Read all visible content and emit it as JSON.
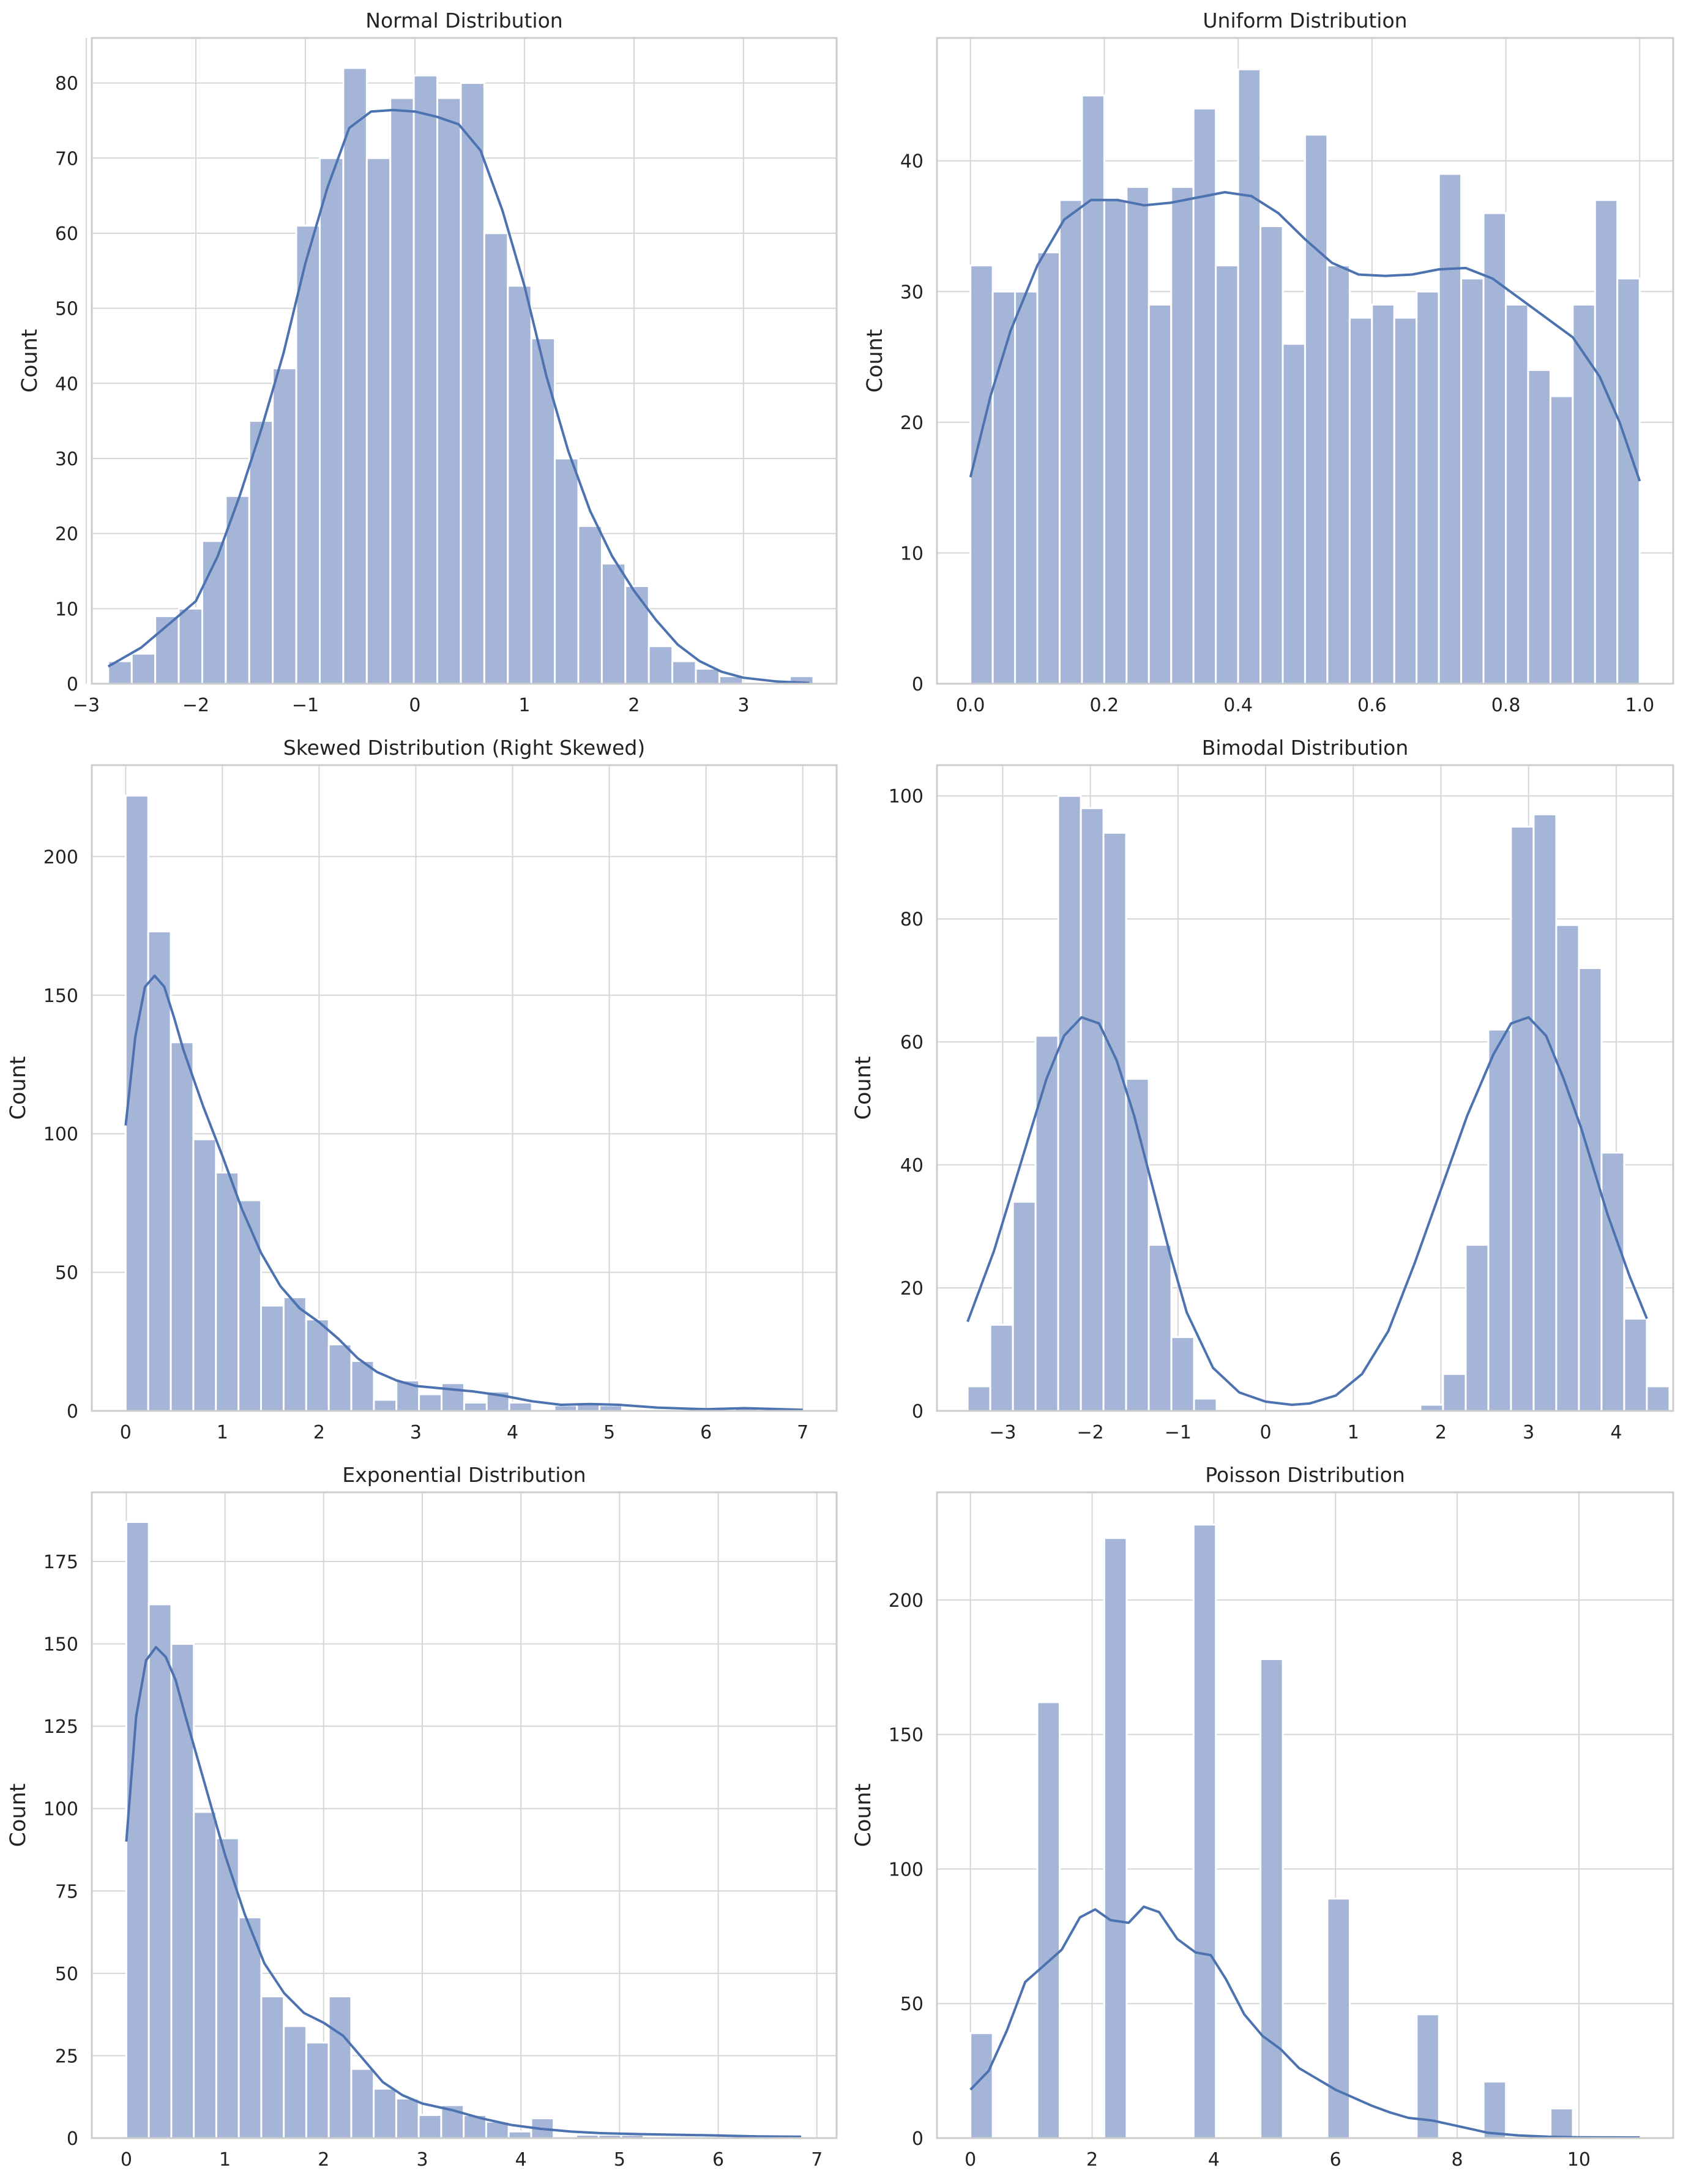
{
  "chart_data": [
    {
      "type": "histogram",
      "title": "Normal Distribution",
      "xlabel": "",
      "ylabel": "Count",
      "xlim": [
        -2.95,
        3.85
      ],
      "ylim": [
        0,
        86
      ],
      "xticks": [
        -3,
        -2,
        -1,
        0,
        1,
        2,
        3
      ],
      "xticklabels": [
        "−3",
        "−2",
        "−1",
        "0",
        "1",
        "2",
        "3"
      ],
      "yticks": [
        0,
        10,
        20,
        30,
        40,
        50,
        60,
        70,
        80
      ],
      "yticklabels": [
        "0",
        "10",
        "20",
        "30",
        "40",
        "50",
        "60",
        "70",
        "80"
      ],
      "bin_start": -2.8,
      "bin_width": 0.2146,
      "counts": [
        3,
        4,
        9,
        10,
        19,
        25,
        35,
        42,
        61,
        70,
        82,
        70,
        78,
        81,
        78,
        80,
        60,
        53,
        46,
        30,
        21,
        16,
        13,
        5,
        3,
        2,
        1,
        0,
        0,
        1
      ],
      "kde": {
        "x": [
          -2.8,
          -2.5,
          -2.2,
          -2.0,
          -1.8,
          -1.6,
          -1.4,
          -1.2,
          -1.0,
          -0.8,
          -0.6,
          -0.4,
          -0.2,
          0.0,
          0.2,
          0.4,
          0.6,
          0.8,
          1.0,
          1.2,
          1.4,
          1.6,
          1.8,
          2.0,
          2.2,
          2.4,
          2.6,
          2.8,
          3.0,
          3.3,
          3.6
        ],
        "y": [
          2.3,
          4.8,
          8.5,
          11,
          17,
          25,
          34,
          44,
          56,
          66,
          74,
          76.2,
          76.4,
          76.2,
          75.5,
          74.5,
          71,
          63,
          53,
          41,
          31,
          23,
          17,
          12.4,
          8.5,
          5.2,
          3,
          1.6,
          0.8,
          0.3,
          0.1
        ]
      }
    },
    {
      "type": "histogram",
      "title": "Uniform Distribution",
      "xlabel": "",
      "ylabel": "Count",
      "xlim": [
        -0.05,
        1.05
      ],
      "ylim": [
        0,
        49.4
      ],
      "xticks": [
        0.0,
        0.2,
        0.4,
        0.6,
        0.8,
        1.0
      ],
      "xticklabels": [
        "0.0",
        "0.2",
        "0.4",
        "0.6",
        "0.8",
        "1.0"
      ],
      "yticks": [
        0,
        10,
        20,
        30,
        40
      ],
      "yticklabels": [
        "0",
        "10",
        "20",
        "30",
        "40"
      ],
      "bin_start": 0.0,
      "bin_width": 0.03333,
      "counts": [
        32,
        30,
        30,
        33,
        37,
        45,
        37,
        38,
        29,
        38,
        44,
        32,
        47,
        35,
        26,
        42,
        32,
        28,
        29,
        28,
        30,
        39,
        31,
        36,
        29,
        24,
        22,
        29,
        37,
        31
      ],
      "kde": {
        "x": [
          0.0,
          0.03,
          0.06,
          0.1,
          0.14,
          0.18,
          0.22,
          0.26,
          0.3,
          0.34,
          0.38,
          0.42,
          0.46,
          0.5,
          0.54,
          0.58,
          0.62,
          0.66,
          0.7,
          0.74,
          0.78,
          0.82,
          0.86,
          0.9,
          0.94,
          0.97,
          1.0
        ],
        "y": [
          15.8,
          22,
          27,
          32,
          35.5,
          37,
          37,
          36.6,
          36.8,
          37.2,
          37.6,
          37.3,
          36,
          34,
          32.2,
          31.3,
          31.2,
          31.3,
          31.7,
          31.8,
          31,
          29.5,
          28,
          26.5,
          23.5,
          20,
          15.5
        ]
      }
    },
    {
      "type": "histogram",
      "title": "Skewed Distribution (Right Skewed)",
      "xlabel": "",
      "ylabel": "Count",
      "xlim": [
        -0.35,
        7.35
      ],
      "ylim": [
        0,
        233
      ],
      "xticks": [
        0,
        1,
        2,
        3,
        4,
        5,
        6,
        7
      ],
      "xticklabels": [
        "0",
        "1",
        "2",
        "3",
        "4",
        "5",
        "6",
        "7"
      ],
      "yticks": [
        0,
        50,
        100,
        150,
        200
      ],
      "yticklabels": [
        "0",
        "50",
        "100",
        "150",
        "200"
      ],
      "bin_start": 0.0,
      "bin_width": 0.2333,
      "counts": [
        222,
        173,
        133,
        98,
        86,
        76,
        38,
        41,
        33,
        24,
        18,
        4,
        11,
        6,
        10,
        3,
        7,
        3,
        0,
        2,
        3,
        2,
        0,
        0,
        0,
        0,
        0,
        1,
        0,
        0
      ],
      "kde": {
        "x": [
          0.0,
          0.1,
          0.2,
          0.3,
          0.4,
          0.5,
          0.6,
          0.8,
          1.0,
          1.2,
          1.4,
          1.6,
          1.8,
          2.0,
          2.2,
          2.4,
          2.6,
          2.8,
          3.0,
          3.3,
          3.6,
          3.9,
          4.2,
          4.5,
          4.8,
          5.1,
          5.5,
          6.0,
          6.4,
          7.0
        ],
        "y": [
          103,
          135,
          153,
          157,
          153,
          142,
          130,
          110,
          92,
          73,
          57,
          45,
          37,
          32,
          26,
          19,
          14,
          11,
          9,
          8,
          7,
          5.5,
          3.5,
          2.2,
          2.5,
          2.2,
          1.2,
          0.6,
          1,
          0.4
        ]
      }
    },
    {
      "type": "histogram",
      "title": "Bimodal Distribution",
      "xlabel": "",
      "ylabel": "Count",
      "xlim": [
        -3.75,
        4.65
      ],
      "ylim": [
        0,
        105
      ],
      "xticks": [
        -3,
        -2,
        -1,
        0,
        1,
        2,
        3,
        4
      ],
      "xticklabels": [
        "−3",
        "−2",
        "−1",
        "0",
        "1",
        "2",
        "3",
        "4"
      ],
      "yticks": [
        0,
        20,
        40,
        60,
        80,
        100
      ],
      "yticklabels": [
        "0",
        "20",
        "40",
        "60",
        "80",
        "100"
      ],
      "bin_start": -3.4,
      "bin_width": 0.2583,
      "counts": [
        4,
        14,
        34,
        61,
        100,
        98,
        94,
        54,
        27,
        12,
        2,
        0,
        0,
        0,
        0,
        0,
        0,
        0,
        0,
        0,
        1,
        6,
        27,
        62,
        95,
        97,
        79,
        72,
        42,
        15,
        4
      ],
      "kde": {
        "x": [
          -3.4,
          -3.1,
          -2.8,
          -2.5,
          -2.3,
          -2.1,
          -1.9,
          -1.7,
          -1.5,
          -1.3,
          -1.1,
          -0.9,
          -0.6,
          -0.3,
          0.0,
          0.3,
          0.5,
          0.8,
          1.1,
          1.4,
          1.7,
          2.0,
          2.3,
          2.6,
          2.8,
          3.0,
          3.2,
          3.4,
          3.6,
          3.9,
          4.15,
          4.35
        ],
        "y": [
          14.5,
          26,
          40,
          54,
          61,
          64,
          63,
          57,
          48,
          37,
          26,
          16,
          7,
          3,
          1.5,
          1,
          1.2,
          2.5,
          6,
          13,
          24,
          36,
          48,
          58,
          63,
          64,
          61,
          54,
          46,
          32,
          22,
          15
        ]
      }
    },
    {
      "type": "histogram",
      "title": "Exponential Distribution",
      "xlabel": "",
      "ylabel": "Count",
      "xlim": [
        -0.35,
        7.2
      ],
      "ylim": [
        0,
        196
      ],
      "xticks": [
        0,
        1,
        2,
        3,
        4,
        5,
        6,
        7
      ],
      "xticklabels": [
        "0",
        "1",
        "2",
        "3",
        "4",
        "5",
        "6",
        "7"
      ],
      "yticks": [
        0,
        25,
        50,
        75,
        100,
        125,
        150,
        175
      ],
      "yticklabels": [
        "0",
        "25",
        "50",
        "75",
        "100",
        "125",
        "150",
        "175"
      ],
      "bin_start": 0.0,
      "bin_width": 0.228,
      "counts": [
        187,
        162,
        150,
        99,
        91,
        67,
        43,
        34,
        29,
        43,
        21,
        15,
        12,
        7,
        10,
        7,
        5,
        2,
        6,
        0,
        1,
        1,
        1,
        0,
        0,
        0,
        0,
        0,
        0,
        0
      ],
      "kde": {
        "x": [
          0.0,
          0.1,
          0.2,
          0.3,
          0.4,
          0.5,
          0.6,
          0.8,
          1.0,
          1.2,
          1.4,
          1.6,
          1.8,
          2.0,
          2.2,
          2.4,
          2.6,
          2.8,
          3.0,
          3.3,
          3.6,
          3.9,
          4.2,
          4.5,
          4.8,
          5.2,
          5.6,
          6.0,
          6.4,
          6.84
        ],
        "y": [
          90,
          128,
          145,
          149,
          146,
          139,
          128,
          107,
          86,
          68,
          53,
          44,
          38,
          35,
          31,
          24,
          17,
          13,
          10.5,
          8.5,
          6,
          4,
          2.8,
          2,
          1.5,
          1.2,
          1,
          0.8,
          0.5,
          0.4
        ]
      }
    },
    {
      "type": "histogram",
      "title": "Poisson Distribution",
      "xlabel": "",
      "ylabel": "Count",
      "xlim": [
        -0.55,
        11.55
      ],
      "ylim": [
        0,
        240
      ],
      "xticks": [
        0,
        2,
        4,
        6,
        8,
        10
      ],
      "xticklabels": [
        "0",
        "2",
        "4",
        "6",
        "8",
        "10"
      ],
      "yticks": [
        0,
        50,
        100,
        150,
        200
      ],
      "yticklabels": [
        "0",
        "50",
        "100",
        "150",
        "200"
      ],
      "bin_start": 0.0,
      "bin_width": 0.3667,
      "counts": [
        39,
        0,
        0,
        162,
        0,
        0,
        223,
        0,
        0,
        0,
        228,
        0,
        0,
        178,
        0,
        0,
        89,
        0,
        0,
        0,
        46,
        0,
        0,
        21,
        0,
        0,
        11,
        0,
        0,
        1
      ],
      "kde": {
        "x": [
          0.0,
          0.3,
          0.6,
          0.9,
          1.2,
          1.5,
          1.8,
          2.05,
          2.3,
          2.6,
          2.85,
          3.1,
          3.4,
          3.7,
          3.95,
          4.2,
          4.5,
          4.8,
          5.1,
          5.4,
          5.7,
          6.0,
          6.3,
          6.6,
          6.9,
          7.2,
          7.6,
          8.0,
          8.5,
          9.0,
          9.5,
          10.0,
          11.0
        ],
        "y": [
          18,
          25,
          40,
          58,
          64,
          70,
          82,
          85,
          81,
          80,
          86,
          84,
          74,
          69,
          68,
          59,
          46,
          38,
          33,
          26,
          22,
          18,
          15,
          12,
          9.5,
          7.5,
          6.5,
          4.5,
          2,
          1,
          0.5,
          0.3,
          0.2
        ]
      }
    }
  ],
  "colors": {
    "bar_fill": "#a4b5d8",
    "bar_edge": "#ffffff",
    "kde_line": "#4c72b0",
    "grid": "#d6d6d6",
    "axes_edge": "#cccccc",
    "text": "#222222"
  }
}
